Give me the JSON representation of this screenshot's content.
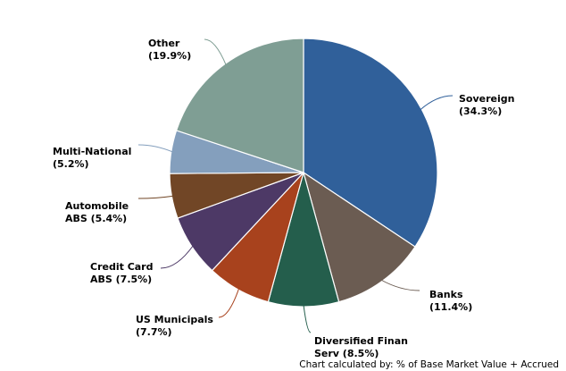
{
  "chart_data": {
    "type": "pie",
    "title": "",
    "slices": [
      {
        "label": [
          "Sovereign",
          "(34.3%)"
        ],
        "value": 34.3,
        "color": "#30609a"
      },
      {
        "label": [
          "Banks",
          "(11.4%)"
        ],
        "value": 11.4,
        "color": "#6b5c52"
      },
      {
        "label": [
          "Diversified Finan",
          "Serv (8.5%)"
        ],
        "value": 8.5,
        "color": "#245e4c"
      },
      {
        "label": [
          "US Municipals",
          "(7.7%)"
        ],
        "value": 7.7,
        "color": "#a8421d"
      },
      {
        "label": [
          "Credit Card",
          "ABS (7.5%)"
        ],
        "value": 7.5,
        "color": "#4d3966"
      },
      {
        "label": [
          "Automobile",
          "ABS (5.4%)"
        ],
        "value": 5.4,
        "color": "#714626"
      },
      {
        "label": [
          "Multi-National",
          "(5.2%)"
        ],
        "value": 5.2,
        "color": "#849fbd"
      },
      {
        "label": [
          "Other",
          "(19.9%)"
        ],
        "value": 19.9,
        "color": "#7f9e94"
      }
    ]
  },
  "footnote": "Chart calculated by: % of Base Market Value + Accrued"
}
